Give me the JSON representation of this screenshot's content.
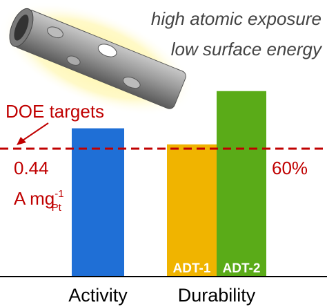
{
  "header": {
    "line1": "high atomic exposure",
    "line2": "low surface energy"
  },
  "chart_data": {
    "type": "bar",
    "target_label": "DOE targets",
    "target_color": "#c00000",
    "groups": [
      {
        "name": "Activity",
        "target": 0.44,
        "unit": "A mg",
        "unit_sup": "-1",
        "unit_sub": "Pt",
        "bars": [
          {
            "value": 0.51,
            "color": "#1f6fd6"
          }
        ]
      },
      {
        "name": "Durability",
        "target": {
          "value": 60,
          "label": "60%"
        },
        "bars": [
          {
            "name": "ADT-1",
            "value": 62,
            "color": "#f0b400"
          },
          {
            "name": "ADT-2",
            "value": 87,
            "color": "#5aab18"
          }
        ]
      }
    ]
  }
}
